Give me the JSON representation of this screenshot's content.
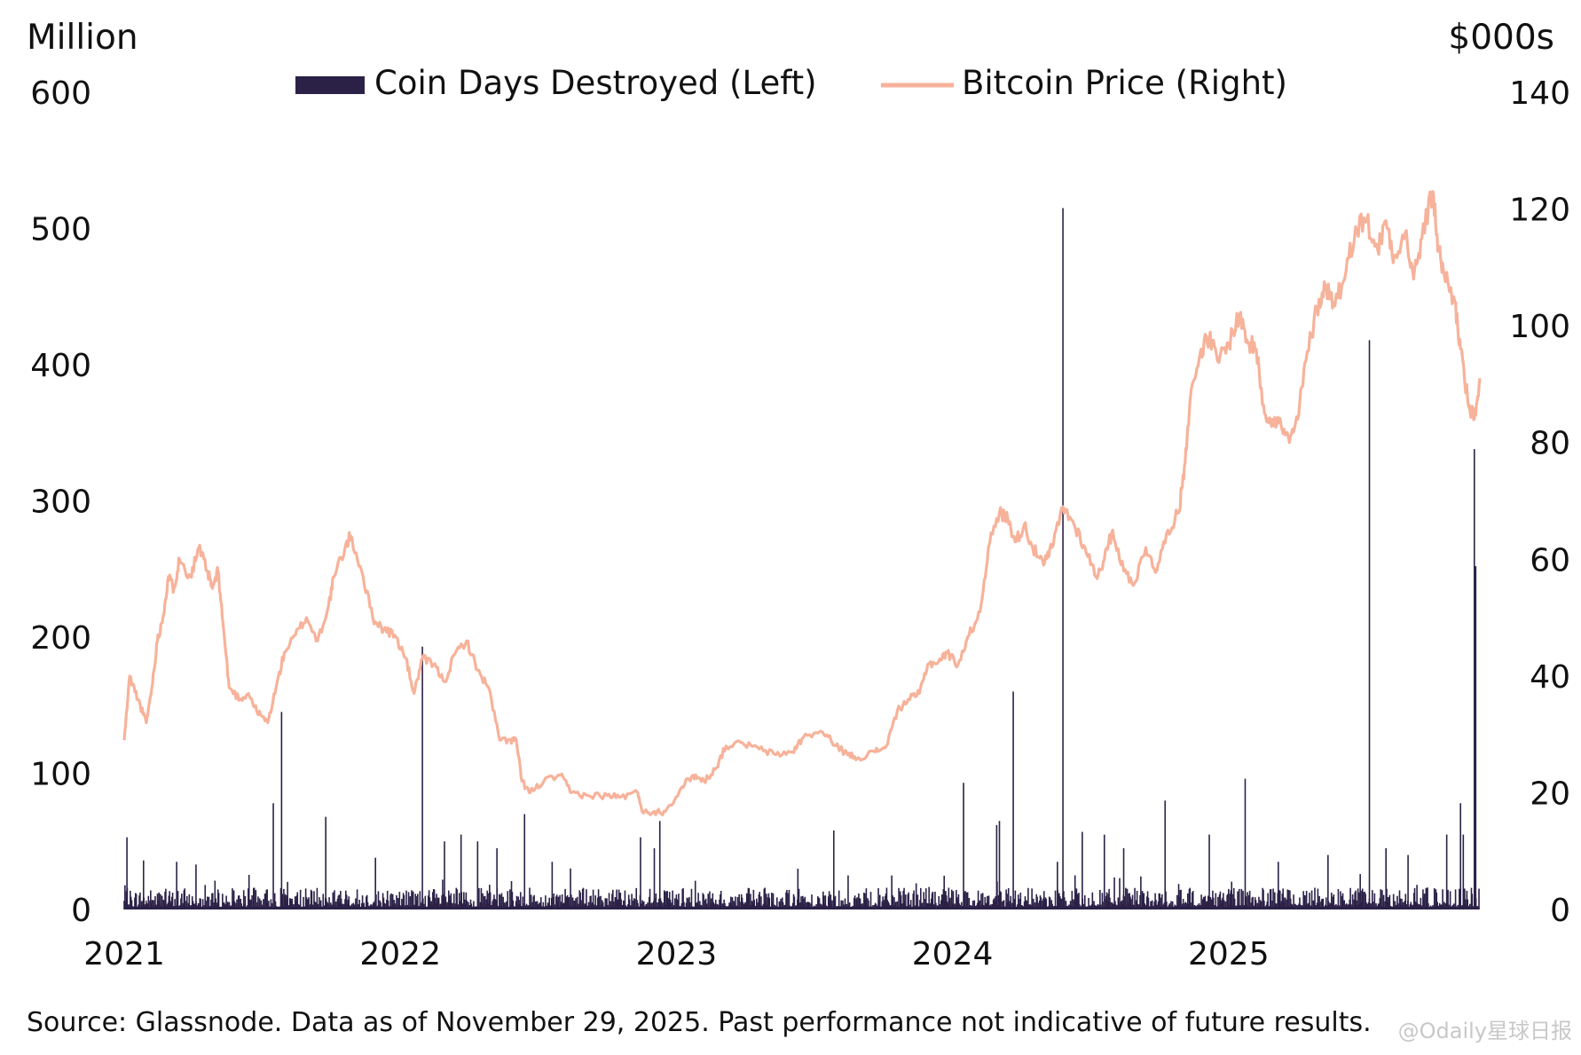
{
  "chart_data": {
    "type": "bar+line",
    "left_axis_title": "Million",
    "right_axis_title": "$000s",
    "left_ylim": [
      0,
      600
    ],
    "right_ylim": [
      0,
      140
    ],
    "left_ticks": [
      "0",
      "100",
      "200",
      "300",
      "400",
      "500",
      "600"
    ],
    "right_ticks": [
      "0",
      "20",
      "40",
      "60",
      "80",
      "100",
      "120",
      "140"
    ],
    "x_ticks": [
      {
        "label": "2021",
        "t": 2021.0
      },
      {
        "label": "2022",
        "t": 2022.0
      },
      {
        "label": "2023",
        "t": 2023.0
      },
      {
        "label": "2024",
        "t": 2024.0
      },
      {
        "label": "2025",
        "t": 2025.0
      }
    ],
    "xlim": [
      2021.0,
      2025.91
    ],
    "legend": [
      {
        "label": "Coin Days Destroyed (Left)",
        "color": "#2b2147",
        "kind": "bar"
      },
      {
        "label": "Bitcoin Price (Right)",
        "color": "#f7b29a",
        "kind": "line"
      }
    ],
    "series": [
      {
        "name": "Coin Days Destroyed (Left)",
        "axis": "left",
        "kind": "bar",
        "color": "#2b2147",
        "baseline_range": [
          2,
          16
        ],
        "spikes": [
          {
            "t": 2021.01,
            "v": 53
          },
          {
            "t": 2021.07,
            "v": 36
          },
          {
            "t": 2021.19,
            "v": 35
          },
          {
            "t": 2021.26,
            "v": 33
          },
          {
            "t": 2021.54,
            "v": 78
          },
          {
            "t": 2021.57,
            "v": 145
          },
          {
            "t": 2021.73,
            "v": 68
          },
          {
            "t": 2021.91,
            "v": 38
          },
          {
            "t": 2022.08,
            "v": 193
          },
          {
            "t": 2022.16,
            "v": 50
          },
          {
            "t": 2022.22,
            "v": 55
          },
          {
            "t": 2022.28,
            "v": 50
          },
          {
            "t": 2022.35,
            "v": 45
          },
          {
            "t": 2022.45,
            "v": 70
          },
          {
            "t": 2022.55,
            "v": 35
          },
          {
            "t": 2022.87,
            "v": 53
          },
          {
            "t": 2022.92,
            "v": 45
          },
          {
            "t": 2022.94,
            "v": 65
          },
          {
            "t": 2023.44,
            "v": 30
          },
          {
            "t": 2023.57,
            "v": 58
          },
          {
            "t": 2023.78,
            "v": 25
          },
          {
            "t": 2024.04,
            "v": 93
          },
          {
            "t": 2024.16,
            "v": 62
          },
          {
            "t": 2024.17,
            "v": 65
          },
          {
            "t": 2024.22,
            "v": 160
          },
          {
            "t": 2024.38,
            "v": 35
          },
          {
            "t": 2024.4,
            "v": 515
          },
          {
            "t": 2024.47,
            "v": 57
          },
          {
            "t": 2024.55,
            "v": 55
          },
          {
            "t": 2024.62,
            "v": 45
          },
          {
            "t": 2024.77,
            "v": 80
          },
          {
            "t": 2024.93,
            "v": 55
          },
          {
            "t": 2025.06,
            "v": 96
          },
          {
            "t": 2025.18,
            "v": 35
          },
          {
            "t": 2025.36,
            "v": 40
          },
          {
            "t": 2025.51,
            "v": 418
          },
          {
            "t": 2025.57,
            "v": 45
          },
          {
            "t": 2025.65,
            "v": 40
          },
          {
            "t": 2025.79,
            "v": 55
          },
          {
            "t": 2025.84,
            "v": 78
          },
          {
            "t": 2025.85,
            "v": 55
          },
          {
            "t": 2025.89,
            "v": 338
          },
          {
            "t": 2025.895,
            "v": 252
          }
        ]
      },
      {
        "name": "Bitcoin Price (Right)",
        "axis": "right",
        "kind": "line",
        "color": "#f7b29a",
        "points": [
          [
            2021.0,
            29
          ],
          [
            2021.02,
            40
          ],
          [
            2021.05,
            36
          ],
          [
            2021.08,
            32
          ],
          [
            2021.1,
            38
          ],
          [
            2021.12,
            46
          ],
          [
            2021.14,
            50
          ],
          [
            2021.16,
            57
          ],
          [
            2021.18,
            55
          ],
          [
            2021.2,
            60
          ],
          [
            2021.24,
            57
          ],
          [
            2021.27,
            62
          ],
          [
            2021.3,
            58
          ],
          [
            2021.32,
            55
          ],
          [
            2021.34,
            58
          ],
          [
            2021.36,
            48
          ],
          [
            2021.38,
            38
          ],
          [
            2021.42,
            36
          ],
          [
            2021.45,
            37
          ],
          [
            2021.48,
            34
          ],
          [
            2021.52,
            32
          ],
          [
            2021.55,
            38
          ],
          [
            2021.58,
            44
          ],
          [
            2021.62,
            47
          ],
          [
            2021.66,
            50
          ],
          [
            2021.7,
            46
          ],
          [
            2021.74,
            52
          ],
          [
            2021.76,
            57
          ],
          [
            2021.8,
            62
          ],
          [
            2021.82,
            64
          ],
          [
            2021.86,
            58
          ],
          [
            2021.9,
            50
          ],
          [
            2021.94,
            48
          ],
          [
            2021.98,
            47
          ],
          [
            2022.02,
            43
          ],
          [
            2022.05,
            37
          ],
          [
            2022.08,
            43
          ],
          [
            2022.12,
            42
          ],
          [
            2022.16,
            39
          ],
          [
            2022.2,
            44
          ],
          [
            2022.24,
            46
          ],
          [
            2022.28,
            41
          ],
          [
            2022.32,
            38
          ],
          [
            2022.36,
            29
          ],
          [
            2022.4,
            29
          ],
          [
            2022.42,
            29
          ],
          [
            2022.44,
            22
          ],
          [
            2022.47,
            20
          ],
          [
            2022.52,
            22
          ],
          [
            2022.58,
            23
          ],
          [
            2022.62,
            20
          ],
          [
            2022.68,
            19.5
          ],
          [
            2022.75,
            19.5
          ],
          [
            2022.8,
            19.3
          ],
          [
            2022.86,
            20
          ],
          [
            2022.88,
            16.5
          ],
          [
            2022.92,
            16.8
          ],
          [
            2022.96,
            16.8
          ],
          [
            2023.02,
            21
          ],
          [
            2023.06,
            23
          ],
          [
            2023.1,
            22
          ],
          [
            2023.14,
            24
          ],
          [
            2023.18,
            28
          ],
          [
            2023.24,
            28.5
          ],
          [
            2023.3,
            27.5
          ],
          [
            2023.36,
            26.5
          ],
          [
            2023.42,
            27
          ],
          [
            2023.46,
            29.5
          ],
          [
            2023.52,
            30.5
          ],
          [
            2023.56,
            29
          ],
          [
            2023.62,
            26.5
          ],
          [
            2023.66,
            26
          ],
          [
            2023.72,
            27
          ],
          [
            2023.76,
            28
          ],
          [
            2023.8,
            34
          ],
          [
            2023.84,
            36
          ],
          [
            2023.88,
            37
          ],
          [
            2023.91,
            42
          ],
          [
            2023.95,
            42.5
          ],
          [
            2023.98,
            44
          ],
          [
            2024.02,
            42
          ],
          [
            2024.06,
            47
          ],
          [
            2024.1,
            51
          ],
          [
            2024.13,
            62
          ],
          [
            2024.17,
            68
          ],
          [
            2024.2,
            67
          ],
          [
            2024.23,
            63
          ],
          [
            2024.26,
            66
          ],
          [
            2024.29,
            62
          ],
          [
            2024.33,
            59
          ],
          [
            2024.36,
            62
          ],
          [
            2024.4,
            69
          ],
          [
            2024.44,
            66
          ],
          [
            2024.48,
            62
          ],
          [
            2024.52,
            57
          ],
          [
            2024.55,
            60
          ],
          [
            2024.58,
            65
          ],
          [
            2024.62,
            58
          ],
          [
            2024.66,
            56
          ],
          [
            2024.7,
            62
          ],
          [
            2024.74,
            58
          ],
          [
            2024.78,
            65
          ],
          [
            2024.82,
            68
          ],
          [
            2024.84,
            76
          ],
          [
            2024.86,
            87
          ],
          [
            2024.9,
            96
          ],
          [
            2024.93,
            98
          ],
          [
            2024.96,
            94
          ],
          [
            2025.0,
            97
          ],
          [
            2025.04,
            102
          ],
          [
            2025.07,
            97
          ],
          [
            2025.1,
            96
          ],
          [
            2025.13,
            85
          ],
          [
            2025.16,
            84
          ],
          [
            2025.19,
            83
          ],
          [
            2025.22,
            80
          ],
          [
            2025.25,
            84
          ],
          [
            2025.28,
            94
          ],
          [
            2025.32,
            103
          ],
          [
            2025.35,
            107
          ],
          [
            2025.38,
            104
          ],
          [
            2025.42,
            108
          ],
          [
            2025.46,
            117
          ],
          [
            2025.5,
            118
          ],
          [
            2025.54,
            113
          ],
          [
            2025.57,
            118
          ],
          [
            2025.6,
            112
          ],
          [
            2025.64,
            116
          ],
          [
            2025.67,
            108
          ],
          [
            2025.7,
            115
          ],
          [
            2025.74,
            123
          ],
          [
            2025.76,
            113
          ],
          [
            2025.78,
            109
          ],
          [
            2025.82,
            104
          ],
          [
            2025.84,
            96
          ],
          [
            2025.87,
            86
          ],
          [
            2025.89,
            84
          ],
          [
            2025.91,
            91
          ]
        ]
      }
    ],
    "source_note": "Source: Glassnode. Data as of November 29, 2025. Past performance not indicative of future results."
  },
  "watermark": "@Odaily星球日报"
}
